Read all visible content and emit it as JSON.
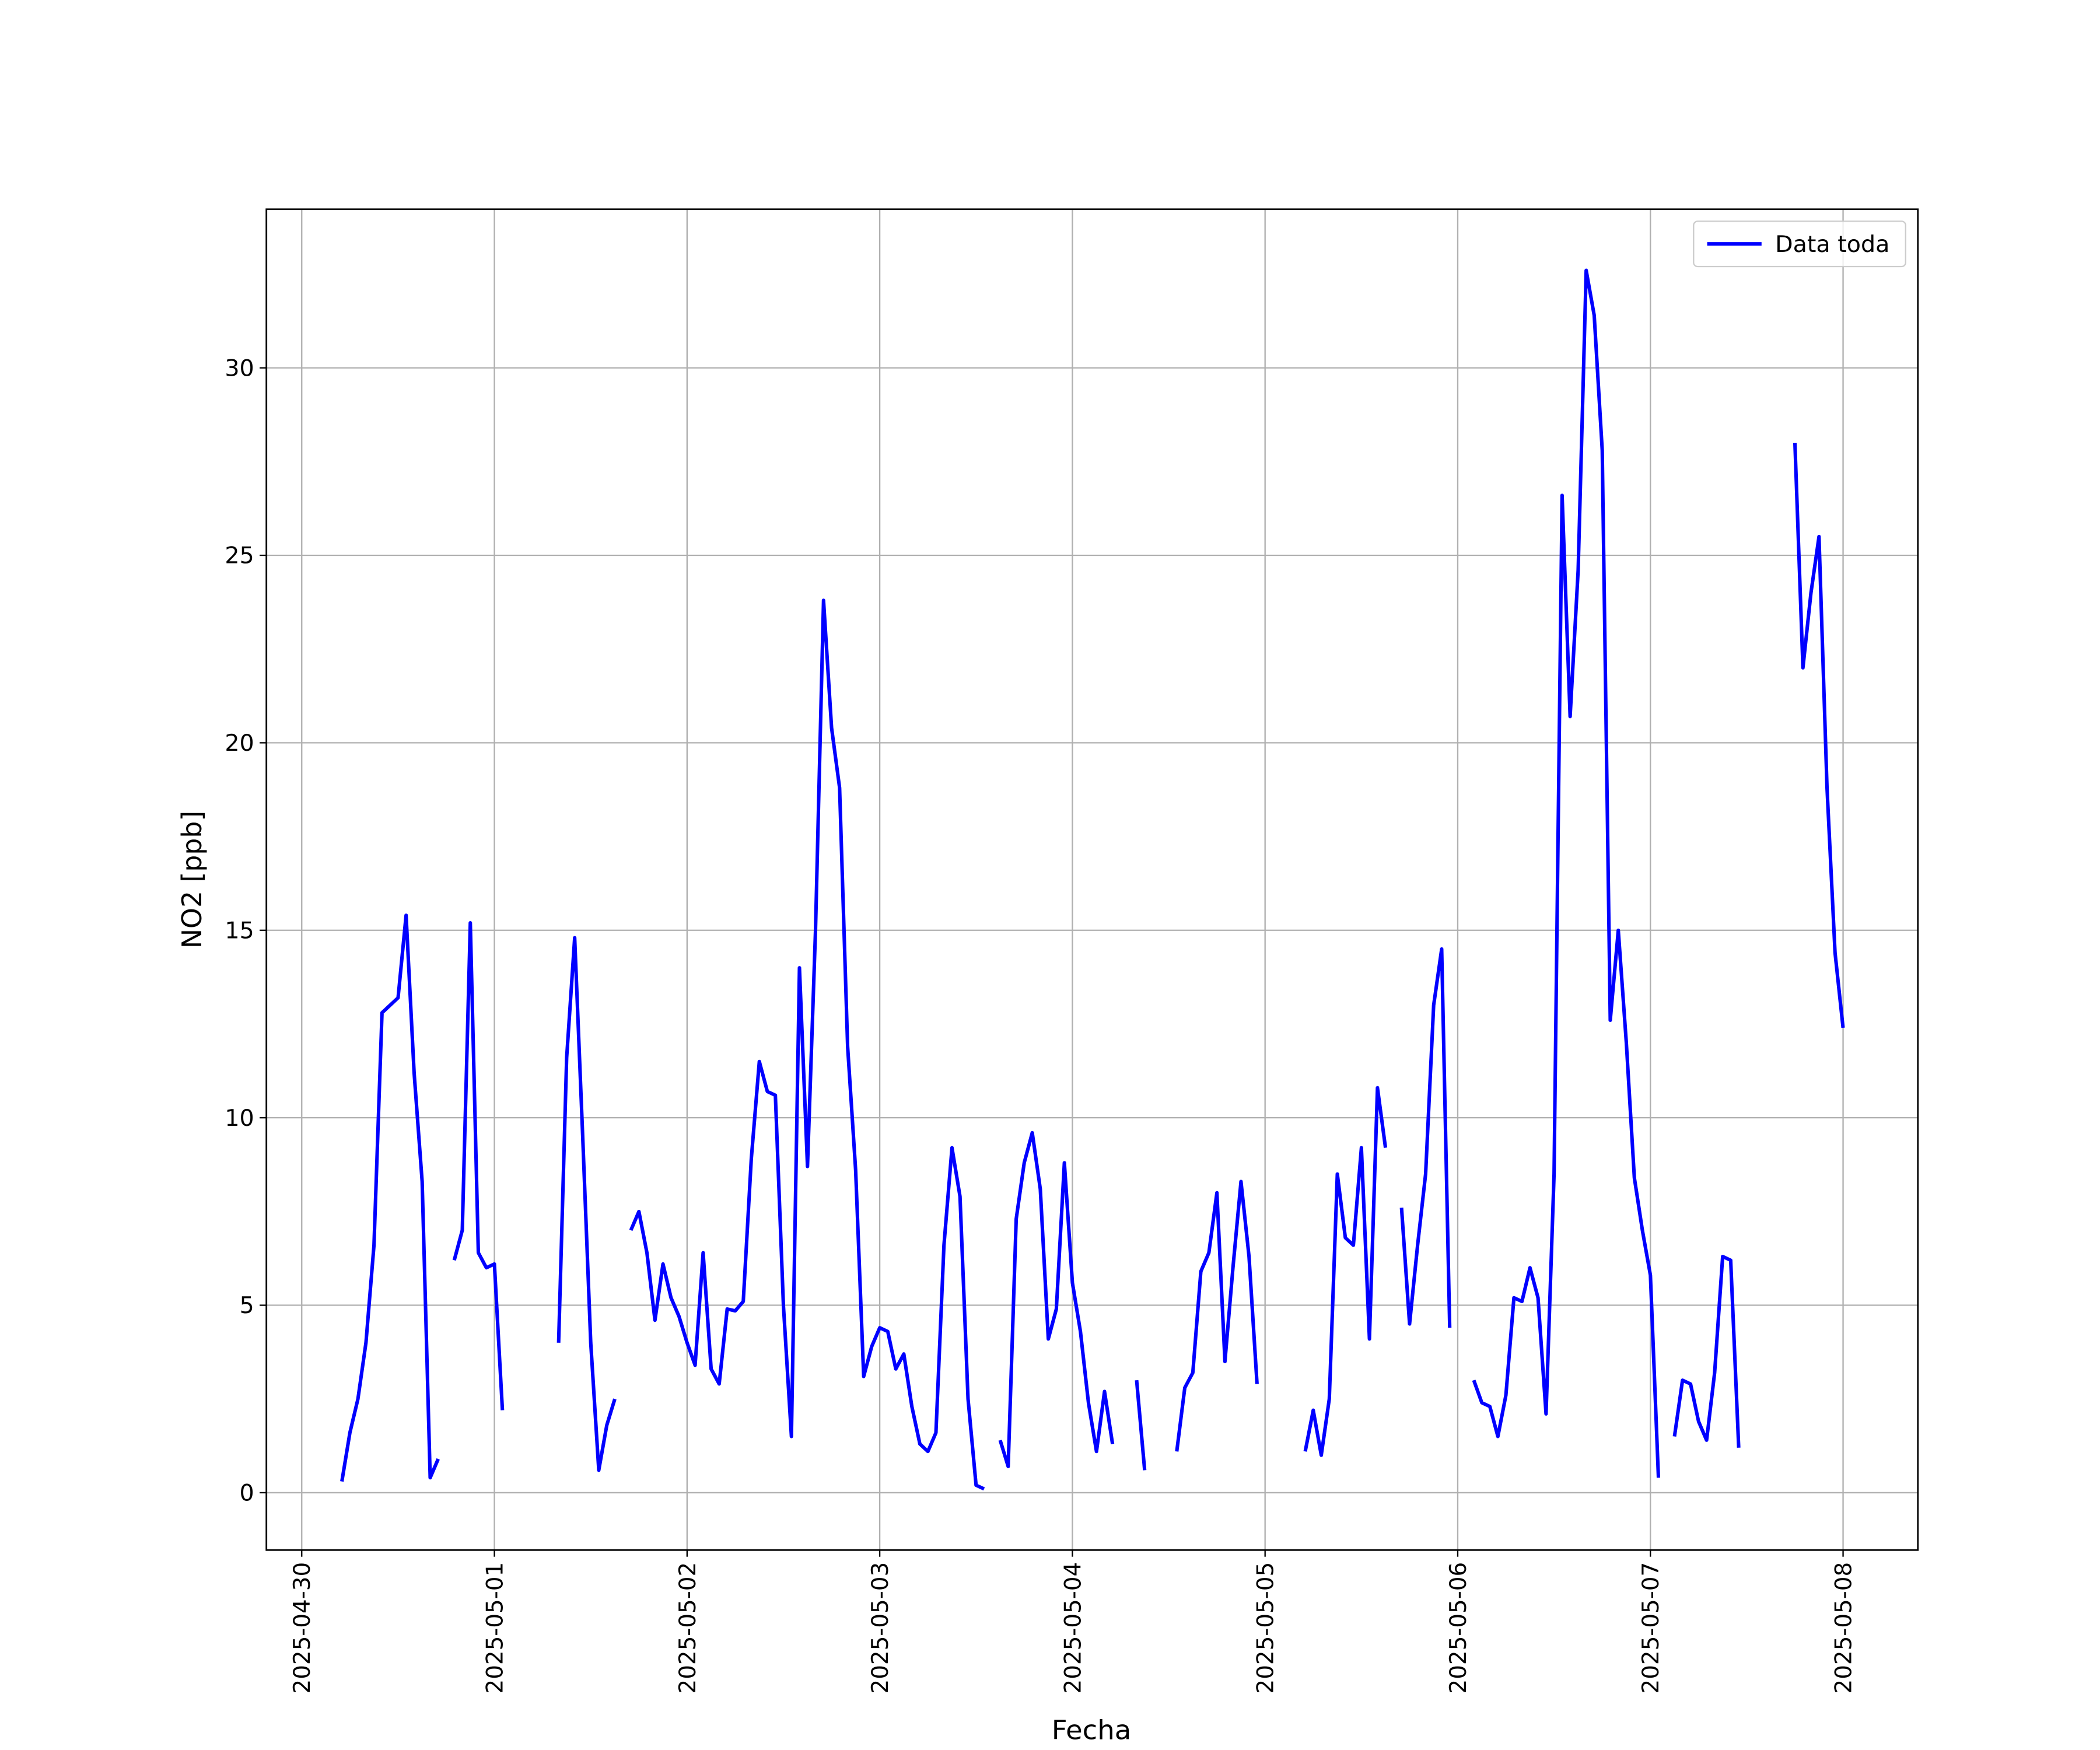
{
  "chart_data": {
    "type": "line",
    "xlabel": "Fecha",
    "ylabel": "NO2 [ppb]",
    "x": [
      "2025-04-30 05:00",
      "2025-04-30 06:00",
      "2025-04-30 07:00",
      "2025-04-30 08:00",
      "2025-04-30 09:00",
      "2025-04-30 10:00",
      "2025-04-30 11:00",
      "2025-04-30 12:00",
      "2025-04-30 13:00",
      "2025-04-30 14:00",
      "2025-04-30 15:00",
      "2025-04-30 16:00",
      "2025-04-30 17:00",
      "2025-04-30 18:00",
      "2025-04-30 19:00",
      "2025-04-30 20:00",
      "2025-04-30 21:00",
      "2025-04-30 22:00",
      "2025-04-30 23:00",
      "2025-05-01 00:00",
      "2025-05-01 01:00",
      "2025-05-01 02:00",
      "2025-05-01 03:00",
      "2025-05-01 04:00",
      "2025-05-01 05:00",
      "2025-05-01 06:00",
      "2025-05-01 07:00",
      "2025-05-01 08:00",
      "2025-05-01 09:00",
      "2025-05-01 10:00",
      "2025-05-01 11:00",
      "2025-05-01 12:00",
      "2025-05-01 13:00",
      "2025-05-01 14:00",
      "2025-05-01 15:00",
      "2025-05-01 16:00",
      "2025-05-01 17:00",
      "2025-05-01 18:00",
      "2025-05-01 19:00",
      "2025-05-01 20:00",
      "2025-05-01 21:00",
      "2025-05-01 22:00",
      "2025-05-01 23:00",
      "2025-05-02 00:00",
      "2025-05-02 01:00",
      "2025-05-02 02:00",
      "2025-05-02 03:00",
      "2025-05-02 04:00",
      "2025-05-02 05:00",
      "2025-05-02 06:00",
      "2025-05-02 07:00",
      "2025-05-02 08:00",
      "2025-05-02 09:00",
      "2025-05-02 10:00",
      "2025-05-02 11:00",
      "2025-05-02 12:00",
      "2025-05-02 13:00",
      "2025-05-02 14:00",
      "2025-05-02 15:00",
      "2025-05-02 16:00",
      "2025-05-02 17:00",
      "2025-05-02 18:00",
      "2025-05-02 19:00",
      "2025-05-02 20:00",
      "2025-05-02 21:00",
      "2025-05-02 22:00",
      "2025-05-02 23:00",
      "2025-05-03 00:00",
      "2025-05-03 01:00",
      "2025-05-03 02:00",
      "2025-05-03 03:00",
      "2025-05-03 04:00",
      "2025-05-03 05:00",
      "2025-05-03 06:00",
      "2025-05-03 07:00",
      "2025-05-03 08:00",
      "2025-05-03 09:00",
      "2025-05-03 10:00",
      "2025-05-03 11:00",
      "2025-05-03 12:00",
      "2025-05-03 13:00",
      "2025-05-03 14:00",
      "2025-05-03 15:00",
      "2025-05-03 16:00",
      "2025-05-03 17:00",
      "2025-05-03 18:00",
      "2025-05-03 19:00",
      "2025-05-03 20:00",
      "2025-05-03 21:00",
      "2025-05-03 22:00",
      "2025-05-03 23:00",
      "2025-05-04 00:00",
      "2025-05-04 01:00",
      "2025-05-04 02:00",
      "2025-05-04 03:00",
      "2025-05-04 04:00",
      "2025-05-04 05:00",
      "2025-05-04 06:00",
      "2025-05-04 07:00",
      "2025-05-04 08:00",
      "2025-05-04 09:00",
      "2025-05-04 10:00",
      "2025-05-04 11:00",
      "2025-05-04 12:00",
      "2025-05-04 13:00",
      "2025-05-04 14:00",
      "2025-05-04 15:00",
      "2025-05-04 16:00",
      "2025-05-04 17:00",
      "2025-05-04 18:00",
      "2025-05-04 19:00",
      "2025-05-04 20:00",
      "2025-05-04 21:00",
      "2025-05-04 22:00",
      "2025-05-04 23:00",
      "2025-05-05 00:00",
      "2025-05-05 01:00",
      "2025-05-05 02:00",
      "2025-05-05 03:00",
      "2025-05-05 04:00",
      "2025-05-05 05:00",
      "2025-05-05 06:00",
      "2025-05-05 07:00",
      "2025-05-05 08:00",
      "2025-05-05 09:00",
      "2025-05-05 10:00",
      "2025-05-05 11:00",
      "2025-05-05 12:00",
      "2025-05-05 13:00",
      "2025-05-05 14:00",
      "2025-05-05 15:00",
      "2025-05-05 16:00",
      "2025-05-05 17:00",
      "2025-05-05 18:00",
      "2025-05-05 19:00",
      "2025-05-05 20:00",
      "2025-05-05 21:00",
      "2025-05-05 22:00",
      "2025-05-05 23:00",
      "2025-05-06 00:00",
      "2025-05-06 01:00",
      "2025-05-06 02:00",
      "2025-05-06 03:00",
      "2025-05-06 04:00",
      "2025-05-06 05:00",
      "2025-05-06 06:00",
      "2025-05-06 07:00",
      "2025-05-06 08:00",
      "2025-05-06 09:00",
      "2025-05-06 10:00",
      "2025-05-06 11:00",
      "2025-05-06 12:00",
      "2025-05-06 13:00",
      "2025-05-06 14:00",
      "2025-05-06 15:00",
      "2025-05-06 16:00",
      "2025-05-06 17:00",
      "2025-05-06 18:00",
      "2025-05-06 19:00",
      "2025-05-06 20:00",
      "2025-05-06 21:00",
      "2025-05-06 22:00",
      "2025-05-06 23:00",
      "2025-05-07 00:00",
      "2025-05-07 01:00",
      "2025-05-07 02:00",
      "2025-05-07 03:00",
      "2025-05-07 04:00",
      "2025-05-07 05:00",
      "2025-05-07 06:00",
      "2025-05-07 07:00",
      "2025-05-07 08:00",
      "2025-05-07 09:00",
      "2025-05-07 10:00",
      "2025-05-07 11:00",
      "2025-05-07 12:00",
      "2025-05-07 13:00",
      "2025-05-07 14:00",
      "2025-05-07 15:00",
      "2025-05-07 16:00",
      "2025-05-07 17:00",
      "2025-05-07 18:00",
      "2025-05-07 19:00",
      "2025-05-07 20:00",
      "2025-05-07 21:00",
      "2025-05-07 22:00",
      "2025-05-07 23:00",
      "2025-05-08 00:00"
    ],
    "series": [
      {
        "name": "Data toda",
        "color": "#0000ff",
        "values": [
          0.3,
          1.6,
          2.5,
          4.0,
          6.6,
          12.8,
          13.0,
          13.2,
          15.4,
          11.2,
          8.3,
          0.4,
          0.9,
          null,
          6.2,
          7.0,
          15.2,
          6.4,
          6.0,
          6.1,
          2.2,
          null,
          null,
          null,
          null,
          null,
          null,
          4.0,
          11.6,
          14.8,
          9.5,
          4.0,
          0.6,
          1.8,
          2.5,
          null,
          7.0,
          7.5,
          6.4,
          4.6,
          6.1,
          5.2,
          4.7,
          4.0,
          3.4,
          6.4,
          3.3,
          2.9,
          4.9,
          4.85,
          5.1,
          8.9,
          11.5,
          10.7,
          10.6,
          5.0,
          1.5,
          14.0,
          8.7,
          15.0,
          23.8,
          20.4,
          18.8,
          11.9,
          8.6,
          3.1,
          3.9,
          4.4,
          4.3,
          3.3,
          3.7,
          2.3,
          1.3,
          1.1,
          1.6,
          6.6,
          9.2,
          7.9,
          2.5,
          0.2,
          0.1,
          null,
          1.4,
          0.7,
          7.3,
          8.8,
          9.6,
          8.1,
          4.1,
          4.9,
          8.8,
          5.6,
          4.3,
          2.4,
          1.1,
          2.7,
          1.3,
          null,
          null,
          3.0,
          0.6,
          null,
          null,
          null,
          1.1,
          2.8,
          3.2,
          5.9,
          6.4,
          8.0,
          3.5,
          6.0,
          8.3,
          6.3,
          2.9,
          null,
          null,
          null,
          null,
          null,
          1.1,
          2.2,
          1.0,
          2.5,
          8.5,
          6.8,
          6.6,
          9.2,
          4.1,
          10.8,
          9.2,
          null,
          7.6,
          4.5,
          6.6,
          8.5,
          13.0,
          14.5,
          4.4,
          null,
          null,
          3.0,
          2.4,
          2.3,
          1.5,
          2.6,
          5.2,
          5.1,
          6.0,
          5.2,
          2.1,
          8.5,
          26.6,
          20.7,
          24.6,
          32.6,
          31.4,
          27.8,
          12.6,
          15.0,
          12.0,
          8.4,
          7.0,
          5.8,
          0.4,
          null,
          1.5,
          3.0,
          2.9,
          1.9,
          1.4,
          3.2,
          6.3,
          6.2,
          1.2,
          null,
          null,
          null,
          null,
          null,
          null,
          28.0,
          22.0,
          24.0,
          25.5,
          18.8,
          14.4,
          12.4
        ]
      }
    ],
    "xlim": [
      "2025-04-29 19:36",
      "2025-05-08 09:19"
    ],
    "xticks": [
      "2025-04-30",
      "2025-05-01",
      "2025-05-02",
      "2025-05-03",
      "2025-05-04",
      "2025-05-05",
      "2025-05-06",
      "2025-05-07",
      "2025-05-08"
    ],
    "ylim": [
      -1.53,
      34.23
    ],
    "yticks": [
      0,
      5,
      10,
      15,
      20,
      25,
      30
    ],
    "grid": true,
    "legend": "upper right"
  }
}
